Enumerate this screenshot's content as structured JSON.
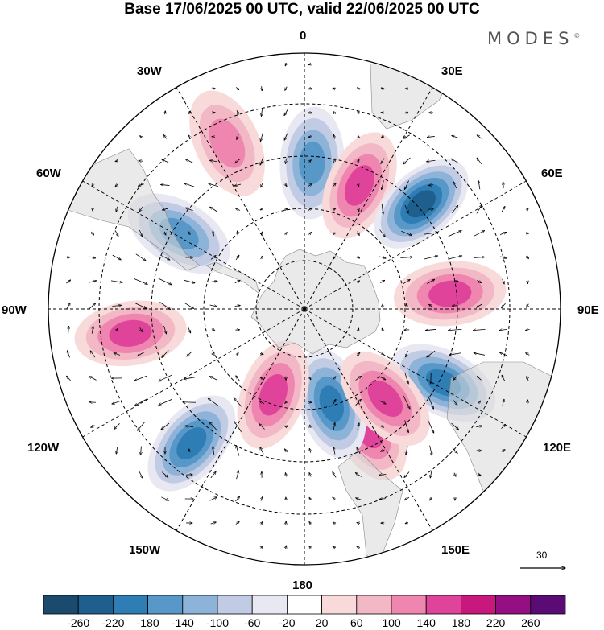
{
  "title": "Base 17/06/2025 00 UTC, valid 22/06/2025 00 UTC",
  "brand": "MODES",
  "brand_mark": "©",
  "longitude_labels": {
    "top": "0",
    "bottom": "180",
    "left": "90W",
    "right": "90E",
    "w30": "30W",
    "w60": "60W",
    "w120": "120W",
    "w150": "150W",
    "e30": "30E",
    "e60": "60E",
    "e120": "120E",
    "e150": "150E"
  },
  "vector_scale_label": "30",
  "colorbar": {
    "ticks": [
      "-260",
      "-220",
      "-180",
      "-140",
      "-100",
      "-60",
      "-20",
      "20",
      "60",
      "100",
      "140",
      "180",
      "220",
      "260"
    ],
    "colors": [
      "#1a4a6e",
      "#1f5f8e",
      "#2f7db5",
      "#5898c8",
      "#8eb3d8",
      "#c1cce4",
      "#e8e8f2",
      "#ffffff",
      "#f9dada",
      "#f2b8c6",
      "#ee86b0",
      "#e0449a",
      "#c8177d",
      "#950f83",
      "#5a0c74"
    ]
  },
  "anomaly_centers": [
    {
      "lon": 3,
      "lat": -50,
      "value": -160
    },
    {
      "lon": 24,
      "lat": -53,
      "value": 150
    },
    {
      "lon": 48,
      "lat": -47,
      "value": -230
    },
    {
      "lon": 84,
      "lat": -50,
      "value": 160
    },
    {
      "lon": 118,
      "lat": -47,
      "value": -200
    },
    {
      "lon": 152,
      "lat": -53,
      "value": 160
    },
    {
      "lon": 164,
      "lat": -63,
      "value": -190
    },
    {
      "lon": 138,
      "lat": -57,
      "value": 150
    },
    {
      "lon": -160,
      "lat": -65,
      "value": 140
    },
    {
      "lon": -140,
      "lat": -42,
      "value": -180
    },
    {
      "lon": -98,
      "lat": -42,
      "value": 170
    },
    {
      "lon": -59,
      "lat": -50,
      "value": -140
    },
    {
      "lon": -25,
      "lat": -40,
      "value": 100
    }
  ]
}
